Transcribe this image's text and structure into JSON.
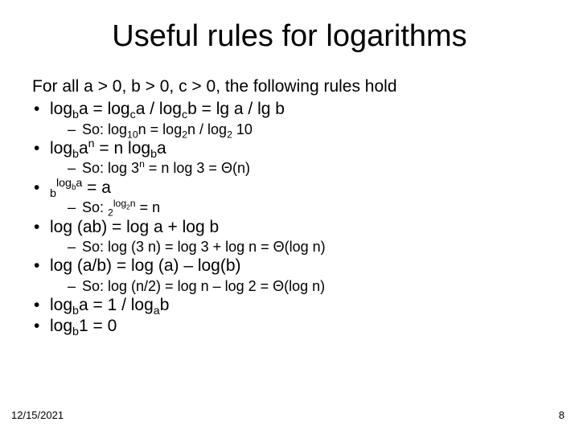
{
  "title": "Useful rules for logarithms",
  "intro": "For all a > 0, b > 0, c > 0, the following rules hold",
  "rules": {
    "r1": {
      "main_html": "log<sub>b</sub>a = log<sub>c</sub>a / log<sub>c</sub>b = lg a / lg b",
      "sub_html": "So: log<sub>10</sub>n = log<sub>2</sub>n / log<sub>2</sub> 10"
    },
    "r2": {
      "main_html": "log<sub>b</sub>a<sup>n</sup> = n log<sub>b</sub>a",
      "sub_html": "So: log 3<sup>n</sup> = n log 3 = Θ(n)"
    },
    "r3": {
      "main_html": "<sub>b</sub><sup>log<sub>b</sub>a</sup> = a",
      "sub_html": "So: <sub>2</sub><sup>log<sub>2</sub>n</sup> = n"
    },
    "r4": {
      "main_html": "log (ab) = log a + log b",
      "sub_html": "So: log (3 n) = log 3 + log n = Θ(log n)"
    },
    "r5": {
      "main_html": "log (a/b) = log (a) – log(b)",
      "sub_html": "So: log (n/2) = log n – log 2 = Θ(log n)"
    },
    "r6": {
      "main_html": "log<sub>b</sub>a = 1 / log<sub>a</sub>b"
    },
    "r7": {
      "main_html": "log<sub>b</sub>1 = 0"
    }
  },
  "footer": {
    "date": "12/15/2021",
    "page": "8"
  },
  "colors": {
    "background": "#ffffff",
    "text": "#000000"
  },
  "typography": {
    "title_fontsize": 38,
    "body_fontsize": 21,
    "sub_fontsize": 18,
    "footer_fontsize": 13,
    "font_family": "Arial"
  }
}
